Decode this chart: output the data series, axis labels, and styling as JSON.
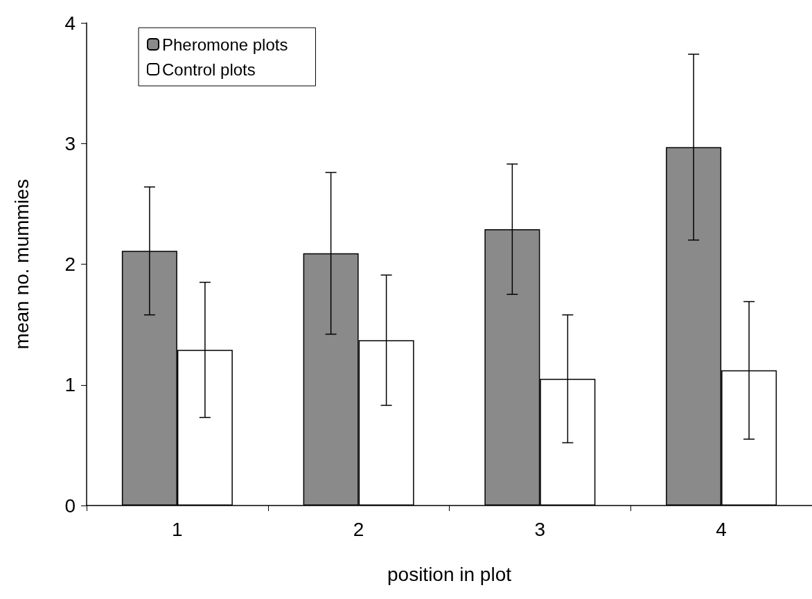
{
  "chart_data": {
    "type": "bar",
    "xlabel": "position in plot",
    "ylabel": "mean no. mummies",
    "categories": [
      "1",
      "2",
      "3",
      "4"
    ],
    "series": [
      {
        "name": "Pheromone plots",
        "color": "#8a8a8a",
        "values": [
          2.11,
          2.09,
          2.29,
          2.97
        ],
        "errors": [
          0.53,
          0.67,
          0.54,
          0.77
        ]
      },
      {
        "name": "Control plots",
        "color": "#ffffff",
        "values": [
          1.29,
          1.37,
          1.05,
          1.12
        ],
        "errors": [
          0.56,
          0.54,
          0.53,
          0.57
        ]
      }
    ],
    "ylim": [
      0,
      4
    ],
    "yticks": [
      0,
      1,
      2,
      3,
      4
    ],
    "grid": false,
    "legend": "top left"
  }
}
